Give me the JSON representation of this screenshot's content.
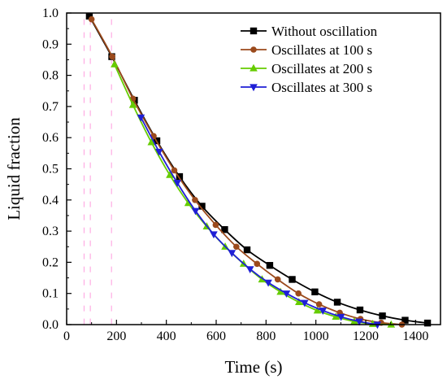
{
  "chart_data": {
    "type": "line",
    "title": "",
    "xlabel": "Time (s)",
    "ylabel": "Liquid fraction",
    "xlim": [
      0,
      1500
    ],
    "ylim": [
      0,
      1.0
    ],
    "x_ticks": [
      0,
      200,
      400,
      600,
      800,
      1000,
      1200,
      1400
    ],
    "x_tick_labels": [
      "0",
      "200",
      "400",
      "600",
      "800",
      "1000",
      "1200",
      "1400"
    ],
    "y_ticks": [
      0,
      0.1,
      0.2,
      0.3,
      0.4,
      0.5,
      0.6,
      0.7,
      0.8,
      0.9,
      1.0
    ],
    "y_tick_labels": [
      "0.0",
      "0.1",
      "0.2",
      "0.3",
      "0.4",
      "0.5",
      "0.6",
      "0.7",
      "0.8",
      "0.9",
      "1.0"
    ],
    "grid": false,
    "legend_position": "top-right",
    "series": [
      {
        "name": "Without oscillation",
        "color": "#000000",
        "marker": "square",
        "x": [
          91,
          181,
          272,
          362,
          453,
          543,
          634,
          724,
          815,
          905,
          996,
          1086,
          1177,
          1267,
          1358,
          1448
        ],
        "y": [
          0.99,
          0.86,
          0.72,
          0.59,
          0.475,
          0.38,
          0.305,
          0.24,
          0.19,
          0.145,
          0.105,
          0.072,
          0.047,
          0.028,
          0.014,
          0.005
        ]
      },
      {
        "name": "Oscillates at 100 s",
        "color": "#9b4a1c",
        "marker": "circle",
        "x": [
          100,
          183,
          266,
          349,
          432,
          515,
          598,
          681,
          764,
          847,
          930,
          1013,
          1096,
          1179,
          1262,
          1345
        ],
        "y": [
          0.98,
          0.86,
          0.725,
          0.605,
          0.495,
          0.4,
          0.32,
          0.25,
          0.195,
          0.145,
          0.1,
          0.065,
          0.038,
          0.018,
          0.006,
          0.0
        ]
      },
      {
        "name": "Oscillates at 200 s",
        "color": "#66cc00",
        "marker": "triangle-up",
        "x": [
          192,
          266,
          340,
          414,
          488,
          562,
          636,
          710,
          784,
          858,
          932,
          1006,
          1080,
          1154,
          1228,
          1302
        ],
        "y": [
          0.835,
          0.705,
          0.585,
          0.48,
          0.39,
          0.315,
          0.25,
          0.195,
          0.145,
          0.105,
          0.072,
          0.045,
          0.025,
          0.01,
          0.002,
          0.0
        ]
      },
      {
        "name": "Oscillates at 300 s",
        "color": "#1f1fd6",
        "marker": "triangle-down",
        "x": [
          298,
          371,
          444,
          517,
          590,
          663,
          736,
          809,
          882,
          955,
          1028,
          1101,
          1174,
          1247
        ],
        "y": [
          0.665,
          0.555,
          0.455,
          0.365,
          0.29,
          0.23,
          0.178,
          0.135,
          0.1,
          0.07,
          0.045,
          0.025,
          0.01,
          0.0
        ]
      }
    ],
    "dashed_artifacts": {
      "color": "#ff8ad8",
      "x": [
        70,
        95,
        180
      ]
    }
  }
}
